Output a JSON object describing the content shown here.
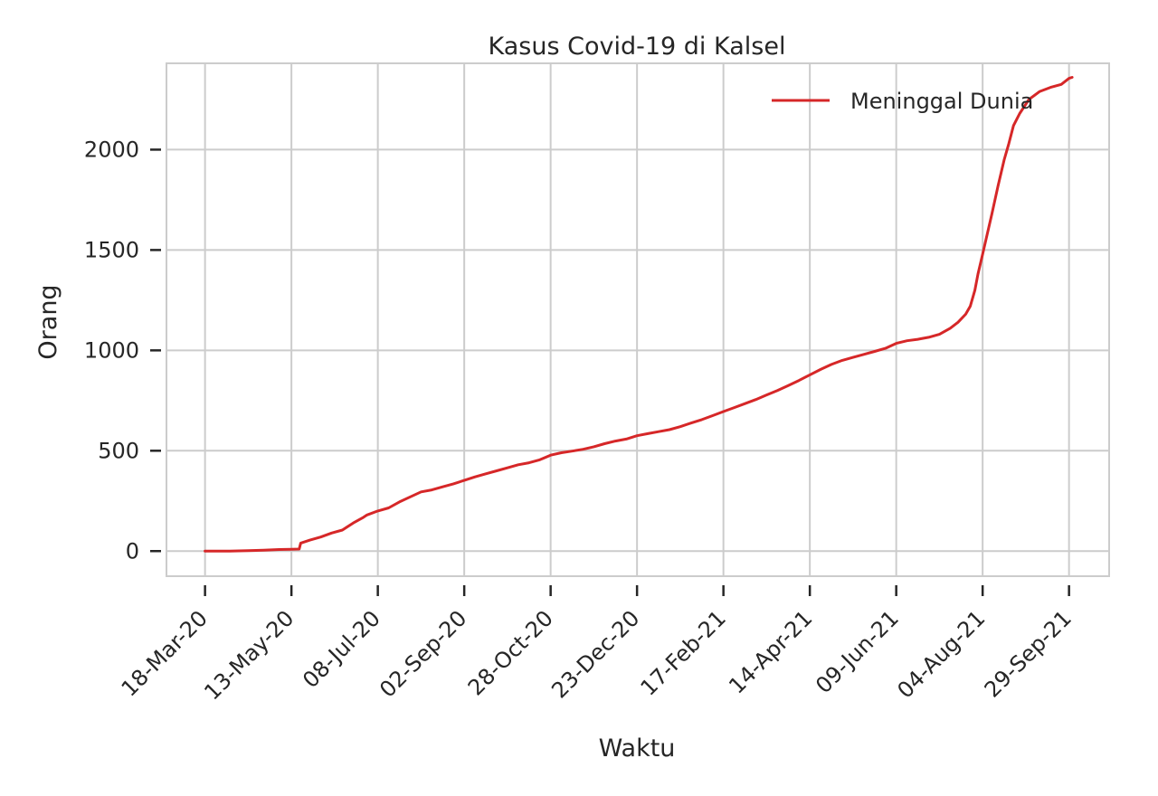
{
  "chart_data": {
    "type": "line",
    "title": "Kasus Covid-19 di Kalsel",
    "xlabel": "Waktu",
    "ylabel": "Orang",
    "ylim": [
      -125,
      2430
    ],
    "yticks": [
      0,
      500,
      1000,
      1500,
      2000
    ],
    "xlim": [
      "2020-02-22",
      "2021-10-25"
    ],
    "xticks": [
      {
        "date": "2020-03-18",
        "label": "18-Mar-20"
      },
      {
        "date": "2020-05-13",
        "label": "13-May-20"
      },
      {
        "date": "2020-07-08",
        "label": "08-Jul-20"
      },
      {
        "date": "2020-09-02",
        "label": "02-Sep-20"
      },
      {
        "date": "2020-10-28",
        "label": "28-Oct-20"
      },
      {
        "date": "2020-12-23",
        "label": "23-Dec-20"
      },
      {
        "date": "2021-02-17",
        "label": "17-Feb-21"
      },
      {
        "date": "2021-04-14",
        "label": "14-Apr-21"
      },
      {
        "date": "2021-06-09",
        "label": "09-Jun-21"
      },
      {
        "date": "2021-08-04",
        "label": "04-Aug-21"
      },
      {
        "date": "2021-09-29",
        "label": "29-Sep-21"
      }
    ],
    "grid": true,
    "legend_position": "top-right",
    "series": [
      {
        "name": "Meninggal Dunia",
        "color": "#d62728",
        "points": [
          [
            "2020-03-18",
            0
          ],
          [
            "2020-04-01",
            0
          ],
          [
            "2020-04-15",
            2
          ],
          [
            "2020-04-25",
            5
          ],
          [
            "2020-05-05",
            8
          ],
          [
            "2020-05-13",
            9
          ],
          [
            "2020-05-18",
            10
          ],
          [
            "2020-05-19",
            40
          ],
          [
            "2020-05-25",
            55
          ],
          [
            "2020-06-01",
            70
          ],
          [
            "2020-06-08",
            90
          ],
          [
            "2020-06-15",
            105
          ],
          [
            "2020-06-22",
            140
          ],
          [
            "2020-06-28",
            165
          ],
          [
            "2020-07-01",
            180
          ],
          [
            "2020-07-08",
            200
          ],
          [
            "2020-07-15",
            215
          ],
          [
            "2020-07-22",
            245
          ],
          [
            "2020-07-29",
            270
          ],
          [
            "2020-08-05",
            295
          ],
          [
            "2020-08-12",
            305
          ],
          [
            "2020-08-19",
            320
          ],
          [
            "2020-08-26",
            335
          ],
          [
            "2020-09-02",
            352
          ],
          [
            "2020-09-09",
            370
          ],
          [
            "2020-09-16",
            385
          ],
          [
            "2020-09-23",
            400
          ],
          [
            "2020-09-30",
            415
          ],
          [
            "2020-10-07",
            430
          ],
          [
            "2020-10-14",
            440
          ],
          [
            "2020-10-21",
            455
          ],
          [
            "2020-10-28",
            478
          ],
          [
            "2020-11-04",
            490
          ],
          [
            "2020-11-11",
            498
          ],
          [
            "2020-11-18",
            507
          ],
          [
            "2020-11-25",
            520
          ],
          [
            "2020-12-02",
            535
          ],
          [
            "2020-12-09",
            548
          ],
          [
            "2020-12-16",
            558
          ],
          [
            "2020-12-23",
            575
          ],
          [
            "2020-12-30",
            585
          ],
          [
            "2021-01-06",
            595
          ],
          [
            "2021-01-13",
            605
          ],
          [
            "2021-01-20",
            620
          ],
          [
            "2021-01-27",
            638
          ],
          [
            "2021-02-03",
            655
          ],
          [
            "2021-02-10",
            675
          ],
          [
            "2021-02-17",
            695
          ],
          [
            "2021-02-24",
            715
          ],
          [
            "2021-03-03",
            735
          ],
          [
            "2021-03-10",
            755
          ],
          [
            "2021-03-17",
            778
          ],
          [
            "2021-03-24",
            800
          ],
          [
            "2021-03-31",
            825
          ],
          [
            "2021-04-07",
            850
          ],
          [
            "2021-04-14",
            878
          ],
          [
            "2021-04-21",
            905
          ],
          [
            "2021-04-28",
            930
          ],
          [
            "2021-05-05",
            950
          ],
          [
            "2021-05-12",
            965
          ],
          [
            "2021-05-19",
            980
          ],
          [
            "2021-05-26",
            995
          ],
          [
            "2021-06-02",
            1010
          ],
          [
            "2021-06-09",
            1035
          ],
          [
            "2021-06-16",
            1048
          ],
          [
            "2021-06-23",
            1055
          ],
          [
            "2021-06-30",
            1065
          ],
          [
            "2021-07-07",
            1080
          ],
          [
            "2021-07-14",
            1110
          ],
          [
            "2021-07-19",
            1140
          ],
          [
            "2021-07-24",
            1180
          ],
          [
            "2021-07-27",
            1220
          ],
          [
            "2021-07-30",
            1300
          ],
          [
            "2021-08-01",
            1380
          ],
          [
            "2021-08-04",
            1480
          ],
          [
            "2021-08-07",
            1580
          ],
          [
            "2021-08-10",
            1680
          ],
          [
            "2021-08-14",
            1820
          ],
          [
            "2021-08-18",
            1950
          ],
          [
            "2021-08-21",
            2030
          ],
          [
            "2021-08-24",
            2120
          ],
          [
            "2021-08-28",
            2180
          ],
          [
            "2021-09-03",
            2250
          ],
          [
            "2021-09-10",
            2290
          ],
          [
            "2021-09-17",
            2310
          ],
          [
            "2021-09-24",
            2325
          ],
          [
            "2021-09-29",
            2355
          ],
          [
            "2021-10-01",
            2360
          ]
        ]
      }
    ]
  }
}
